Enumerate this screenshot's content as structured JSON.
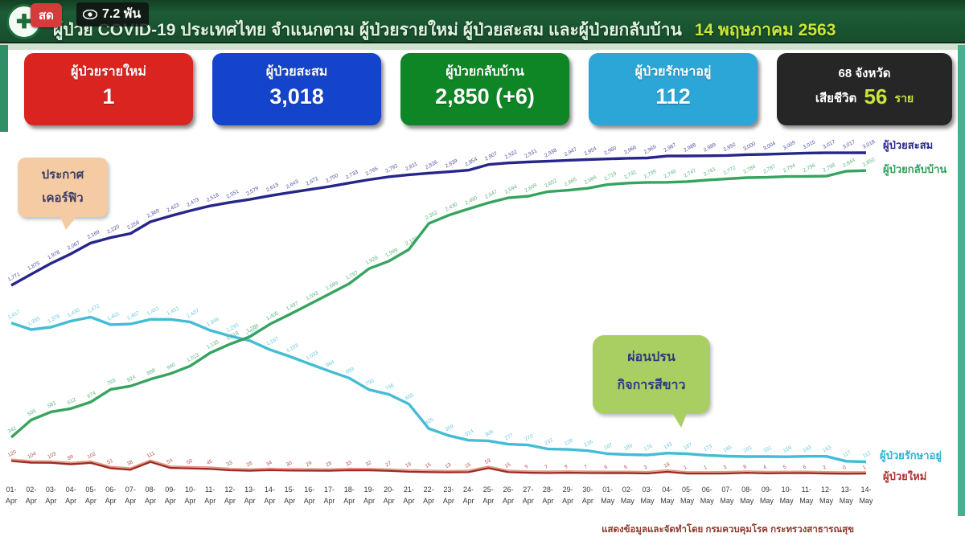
{
  "header": {
    "live_badge": "สด",
    "viewers": "7.2 พัน",
    "title": "ผู้ป่วย COVID-19 ประเทศไทย จำแนกตาม ผู้ป่วยรายใหม่ ผู้ป่วยสะสม และผู้ป่วยกลับบ้าน",
    "date": "14 พฤษภาคม 2563"
  },
  "stats": {
    "cards": [
      {
        "label": "ผู้ป่วยรายใหม่",
        "value": "1",
        "color": "#da2420"
      },
      {
        "label": "ผู้ป่วยสะสม",
        "value": "3,018",
        "color": "#1544cc"
      },
      {
        "label": "ผู้ป่วยกลับบ้าน",
        "value": "2,850 (+6)",
        "color": "#0f8626"
      },
      {
        "label": "ผู้ป่วยรักษาอยู่",
        "value": "112",
        "color": "#2ba6d6"
      }
    ],
    "provinces_card": {
      "line1": "68 จังหวัด",
      "deaths_prefix": "เสียชีวิต",
      "deaths_value": "56",
      "deaths_suffix": "ราย",
      "color": "#262626",
      "accent": "#c9e63a"
    }
  },
  "annotations": {
    "curfew": {
      "line1": "ประกาศ",
      "line2": "เคอร์ฟิว"
    },
    "easing": {
      "line1": "ผ่อนปรน",
      "line2": "กิจการสีขาว"
    }
  },
  "line_labels": {
    "cumulative": "ผู้ป่วยสะสม",
    "recovered": "ผู้ป่วยกลับบ้าน",
    "active": "ผู้ป่วยรักษาอยู่",
    "new": "ผู้ป่วยใหม่"
  },
  "footer": {
    "source": "แสดงข้อมูลและจัดทำโดย กรมควบคุมโรค กระทรวงสาธารณสุข"
  },
  "chart_data": {
    "type": "line",
    "title": "ผู้ป่วย COVID-19 ประเทศไทย จำแนกตาม ผู้ป่วยรายใหม่ ผู้ป่วยสะสม และผู้ป่วยกลับบ้าน 14 พฤษภาคม 2563",
    "xlabel": "",
    "ylabel": "",
    "ylim": [
      0,
      3100
    ],
    "grid": false,
    "legend_position": "line-end-right",
    "x": [
      "01-Apr",
      "02-Apr",
      "03-Apr",
      "04-Apr",
      "05-Apr",
      "06-Apr",
      "07-Apr",
      "08-Apr",
      "09-Apr",
      "10-Apr",
      "11-Apr",
      "12-Apr",
      "13-Apr",
      "14-Apr",
      "15-Apr",
      "16-Apr",
      "17-Apr",
      "18-Apr",
      "19-Apr",
      "20-Apr",
      "21-Apr",
      "22-Apr",
      "23-Apr",
      "24-Apr",
      "25-Apr",
      "26-Apr",
      "27-Apr",
      "28-Apr",
      "29-Apr",
      "30-Apr",
      "01-May",
      "02-May",
      "03-May",
      "04-May",
      "05-May",
      "06-May",
      "07-May",
      "08-May",
      "09-May",
      "10-May",
      "11-May",
      "12-May",
      "13-May",
      "14-May"
    ],
    "series": [
      {
        "name": "ผู้ป่วยสะสม",
        "color": "#26268a",
        "values": [
          1771,
          1875,
          1978,
          2067,
          2169,
          2220,
          2258,
          2369,
          2423,
          2473,
          2518,
          2551,
          2579,
          2613,
          2643,
          2672,
          2700,
          2733,
          2765,
          2792,
          2811,
          2826,
          2839,
          2854,
          2907,
          2922,
          2931,
          2938,
          2947,
          2954,
          2960,
          2966,
          2969,
          2987,
          2988,
          2989,
          2992,
          3000,
          3004,
          3009,
          3015,
          3017,
          3017,
          3018
        ]
      },
      {
        "name": "ผู้ป่วยกลับบ้าน",
        "color": "#36a45e",
        "values": [
          342,
          505,
          581,
          612,
          674,
          793,
          824,
          888,
          940,
          1013,
          1135,
          1218,
          1288,
          1405,
          1497,
          1593,
          1689,
          1787,
          1928,
          1999,
          2108,
          2352,
          2430,
          2490,
          2547,
          2594,
          2609,
          2652,
          2665,
          2684,
          2719,
          2732,
          2739,
          2740,
          2747,
          2761,
          2772,
          2784,
          2787,
          2794,
          2796,
          2798,
          2844,
          2850
        ]
      },
      {
        "name": "ผู้ป่วยรักษาอยู่",
        "color": "#44bcd6",
        "values": [
          1417,
          1355,
          1378,
          1435,
          1472,
          1401,
          1407,
          1451,
          1451,
          1427,
          1348,
          1295,
          1251,
          1167,
          1103,
          1033,
          964,
          899,
          790,
          746,
          655,
          425,
          359,
          314,
          309,
          277,
          270,
          232,
          228,
          216,
          187,
          180,
          176,
          193,
          187,
          173,
          165,
          161,
          161,
          159,
          163,
          163,
          117,
          112
        ]
      },
      {
        "name": "ผู้ป่วยใหม่",
        "color": "#9c2b24",
        "values": [
          120,
          104,
          103,
          89,
          102,
          51,
          38,
          111,
          54,
          50,
          45,
          33,
          28,
          34,
          30,
          29,
          28,
          33,
          32,
          27,
          19,
          15,
          13,
          15,
          53,
          15,
          9,
          7,
          9,
          7,
          6,
          6,
          3,
          18,
          1,
          1,
          3,
          8,
          4,
          5,
          6,
          2,
          0,
          1
        ]
      }
    ]
  }
}
